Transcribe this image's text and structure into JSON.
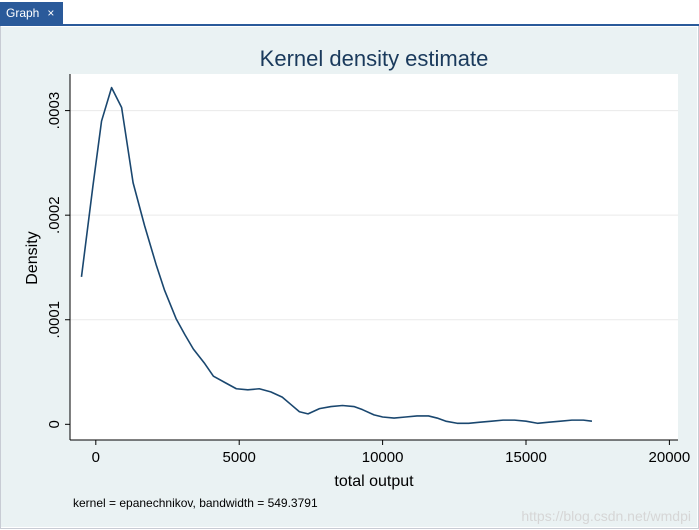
{
  "tab": {
    "label": "Graph",
    "close_glyph": "×"
  },
  "watermark": "https://blog.csdn.net/wmdpi",
  "chart_data": {
    "type": "line",
    "title": "Kernel density estimate",
    "xlabel": "total output",
    "ylabel": "Density",
    "note": "kernel = epanechnikov, bandwidth = 549.3791",
    "xlim": [
      -900,
      20300
    ],
    "ylim": [
      -1.5e-05,
      0.000335
    ],
    "x_ticks": [
      0,
      5000,
      10000,
      15000,
      20000
    ],
    "x_tick_labels": [
      "0",
      "5000",
      "10000",
      "15000",
      "20000"
    ],
    "y_ticks": [
      0,
      0.0001,
      0.0002,
      0.0003
    ],
    "y_tick_labels": [
      "0",
      ".0001",
      ".0002",
      ".0003"
    ],
    "grid": true,
    "line_color": "#1a476f",
    "plot_bg": "#ffffff",
    "outer_bg": "#eaf2f3",
    "series": [
      {
        "x": [
          -500,
          -100,
          200,
          550,
          900,
          1300,
          1700,
          2100,
          2400,
          2800,
          3100,
          3400,
          3800,
          4100,
          4500,
          4900,
          5300,
          5700,
          6100,
          6500,
          6800,
          7100,
          7400,
          7800,
          8200,
          8600,
          9000,
          9300,
          9700,
          10000,
          10400,
          10800,
          11200,
          11600,
          11900,
          12200,
          12600,
          13000,
          13400,
          13800,
          14200,
          14600,
          15000,
          15400,
          15800,
          16200,
          16600,
          17000,
          17300
        ],
        "y": [
          0.000141,
          0.000228,
          0.00029,
          0.000322,
          0.000303,
          0.000231,
          0.00019,
          0.000153,
          0.000128,
          0.000101,
          8.6e-05,
          7.2e-05,
          5.8e-05,
          4.6e-05,
          4e-05,
          3.4e-05,
          3.3e-05,
          3.4e-05,
          3.1e-05,
          2.6e-05,
          1.9e-05,
          1.2e-05,
          1e-05,
          1.5e-05,
          1.7e-05,
          1.8e-05,
          1.7e-05,
          1.4e-05,
          9e-06,
          7e-06,
          6e-06,
          7e-06,
          8e-06,
          8e-06,
          6e-06,
          3e-06,
          1e-06,
          1e-06,
          2e-06,
          3e-06,
          4e-06,
          4e-06,
          3e-06,
          1e-06,
          2e-06,
          3e-06,
          4e-06,
          4e-06,
          3e-06
        ]
      }
    ]
  }
}
